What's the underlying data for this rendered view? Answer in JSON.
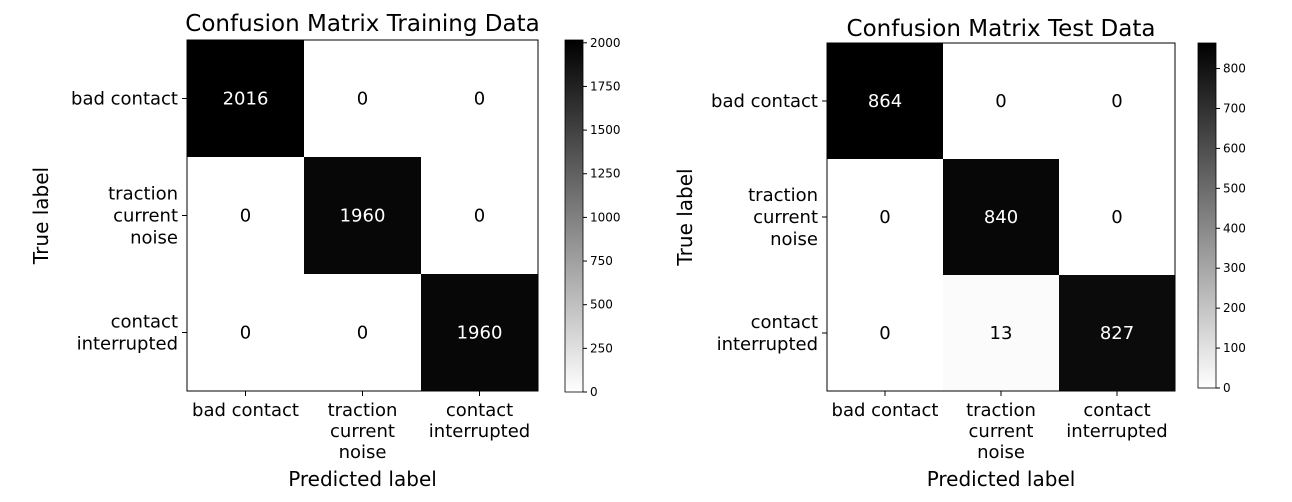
{
  "chart_data": [
    {
      "type": "heatmap",
      "title": "Confusion Matrix Training Data",
      "xlabel": "Predicted label",
      "ylabel": "True label",
      "x_categories": [
        [
          "bad contact"
        ],
        [
          "traction",
          "current",
          "noise"
        ],
        [
          "contact",
          "interrupted"
        ]
      ],
      "y_categories": [
        [
          "bad contact"
        ],
        [
          "traction",
          "current",
          "noise"
        ],
        [
          "contact",
          "interrupted"
        ]
      ],
      "matrix": [
        [
          2016,
          0,
          0
        ],
        [
          0,
          1960,
          0
        ],
        [
          0,
          0,
          1960
        ]
      ],
      "colormap": "gray_r",
      "colorbar": {
        "range": [
          0,
          2016
        ],
        "ticks": [
          0,
          250,
          500,
          750,
          1000,
          1250,
          1500,
          1750,
          2000
        ]
      }
    },
    {
      "type": "heatmap",
      "title": "Confusion Matrix Test Data",
      "xlabel": "Predicted label",
      "ylabel": "True label",
      "x_categories": [
        [
          "bad contact"
        ],
        [
          "traction",
          "current",
          "noise"
        ],
        [
          "contact",
          "interrupted"
        ]
      ],
      "y_categories": [
        [
          "bad contact"
        ],
        [
          "traction",
          "current",
          "noise"
        ],
        [
          "contact",
          "interrupted"
        ]
      ],
      "matrix": [
        [
          864,
          0,
          0
        ],
        [
          0,
          840,
          0
        ],
        [
          0,
          13,
          827
        ]
      ],
      "colormap": "gray_r",
      "colorbar": {
        "range": [
          0,
          864
        ],
        "ticks": [
          0,
          100,
          200,
          300,
          400,
          500,
          600,
          700,
          800
        ]
      }
    }
  ]
}
